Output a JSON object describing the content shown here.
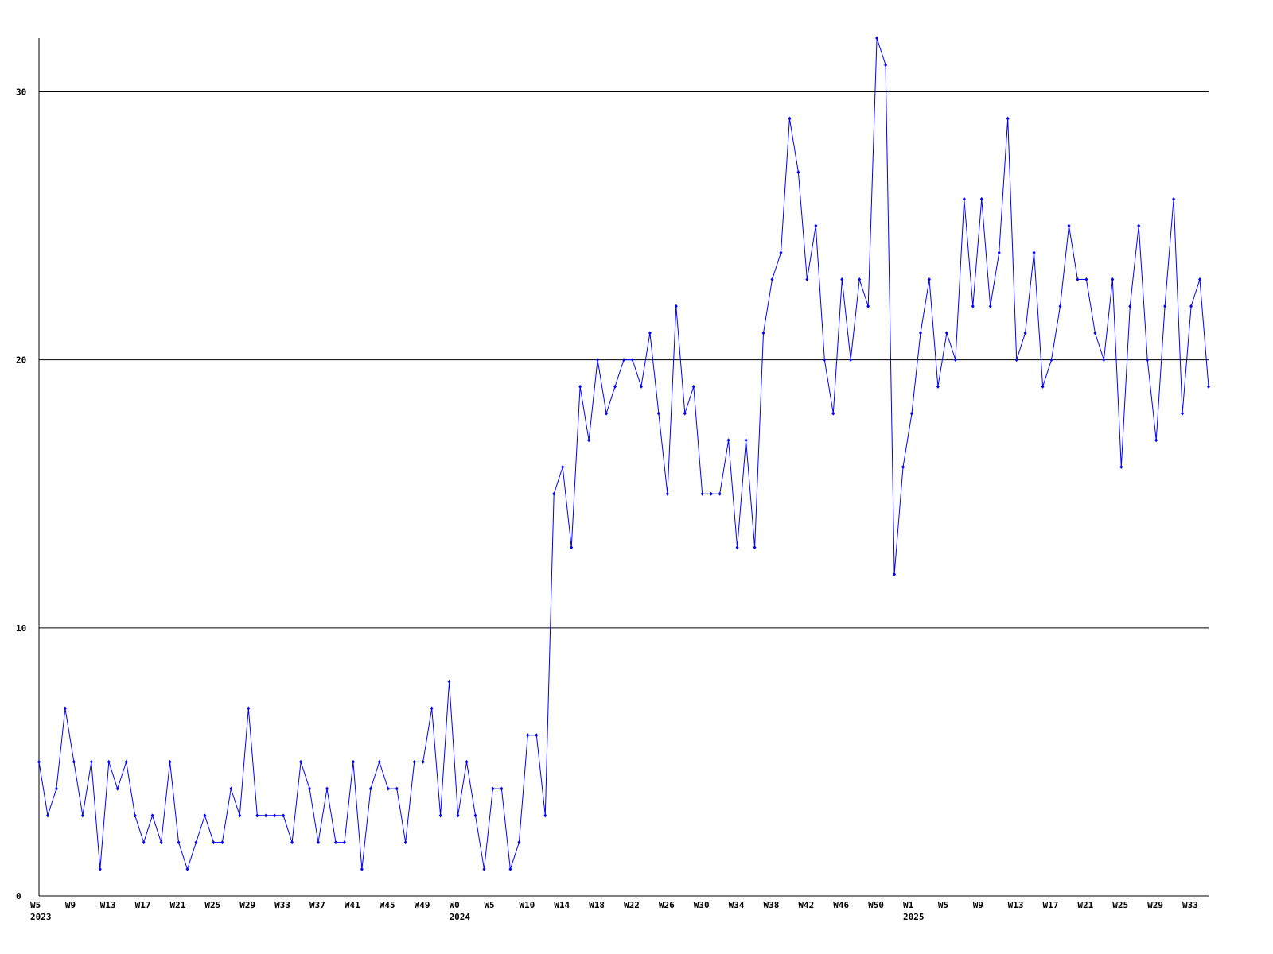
{
  "chart_data": {
    "type": "line",
    "categories": [
      "W5",
      null,
      null,
      null,
      "W9",
      null,
      null,
      null,
      "W13",
      null,
      null,
      null,
      "W17",
      null,
      null,
      null,
      "W21",
      null,
      null,
      null,
      "W25",
      null,
      null,
      null,
      "W29",
      null,
      null,
      null,
      "W33",
      null,
      null,
      null,
      "W37",
      null,
      null,
      null,
      "W41",
      null,
      null,
      null,
      "W45",
      null,
      null,
      null,
      "W49",
      null,
      null,
      null,
      "W0",
      null,
      null,
      null,
      "W5",
      null,
      null,
      null,
      "W10",
      null,
      null,
      null,
      "W14",
      null,
      null,
      null,
      "W18",
      null,
      null,
      null,
      "W22",
      null,
      null,
      null,
      "W26",
      null,
      null,
      null,
      "W30",
      null,
      null,
      null,
      "W34",
      null,
      null,
      null,
      "W38",
      null,
      null,
      null,
      "W42",
      null,
      null,
      null,
      "W46",
      null,
      null,
      null,
      "W50",
      null,
      null,
      null,
      "W1",
      null,
      null,
      null,
      "W5",
      null,
      null,
      null,
      "W9",
      null,
      null,
      null,
      "W13",
      null,
      null,
      null,
      "W17",
      null,
      null,
      null,
      "W21",
      null,
      null,
      null,
      "W25",
      null,
      null,
      null,
      "W29",
      null,
      null,
      null,
      "W33",
      null,
      null
    ],
    "category_years": [
      "2023",
      null,
      null,
      null,
      null,
      null,
      null,
      null,
      null,
      null,
      null,
      null,
      null,
      null,
      null,
      null,
      null,
      null,
      null,
      null,
      null,
      null,
      null,
      null,
      null,
      null,
      null,
      null,
      null,
      null,
      null,
      null,
      null,
      null,
      null,
      null,
      null,
      null,
      null,
      null,
      null,
      null,
      null,
      null,
      null,
      null,
      null,
      null,
      "2024",
      null,
      null,
      null,
      null,
      null,
      null,
      null,
      null,
      null,
      null,
      null,
      null,
      null,
      null,
      null,
      null,
      null,
      null,
      null,
      null,
      null,
      null,
      null,
      null,
      null,
      null,
      null,
      null,
      null,
      null,
      null,
      null,
      null,
      null,
      null,
      null,
      null,
      null,
      null,
      null,
      null,
      null,
      null,
      null,
      null,
      null,
      null,
      null,
      null,
      null,
      null,
      "2025",
      null,
      null,
      null,
      null,
      null,
      null,
      null,
      null,
      null,
      null,
      null,
      null,
      null,
      null,
      null,
      null,
      null,
      null,
      null,
      null,
      null,
      null,
      null,
      null,
      null,
      null,
      null,
      null,
      null,
      null,
      null,
      null,
      null,
      null
    ],
    "series": [
      {
        "color": "#0000ff",
        "values": [
          5,
          3,
          4,
          7,
          5,
          3,
          5,
          1,
          5,
          4,
          5,
          3,
          2,
          3,
          2,
          5,
          2,
          1,
          2,
          3,
          2,
          2,
          4,
          3,
          7,
          3,
          3,
          3,
          3,
          2,
          5,
          4,
          2,
          4,
          2,
          2,
          5,
          1,
          4,
          5,
          4,
          4,
          2,
          5,
          5,
          7,
          3,
          8,
          3,
          5,
          3,
          1,
          4,
          4,
          1,
          2,
          6,
          6,
          3,
          15,
          16,
          13,
          19,
          17,
          20,
          18,
          19,
          20,
          20,
          19,
          21,
          18,
          15,
          22,
          18,
          19,
          15,
          15,
          15,
          17,
          13,
          17,
          13,
          21,
          23,
          24,
          29,
          27,
          23,
          25,
          20,
          18,
          23,
          20,
          23,
          22,
          32,
          31,
          12,
          16,
          18,
          21,
          23,
          19,
          21,
          20,
          26,
          22,
          26,
          22,
          24,
          29,
          20,
          21,
          24,
          19,
          20,
          22,
          25,
          23,
          23,
          21,
          20,
          23,
          16,
          22,
          25,
          20,
          17,
          22,
          26,
          18,
          22,
          23,
          19
        ]
      }
    ],
    "ylim": [
      0,
      32
    ],
    "yticks": [
      0,
      10,
      20,
      30
    ],
    "grid": true
  }
}
